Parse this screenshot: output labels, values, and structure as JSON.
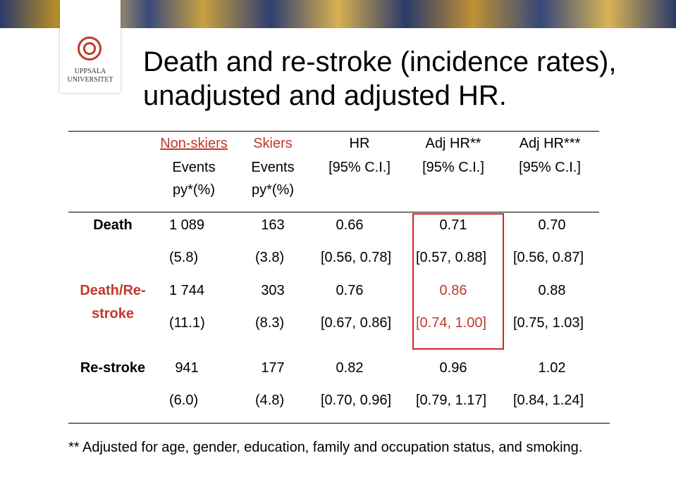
{
  "header": {
    "logo": [
      "UPPSALA",
      "UNIVERSITET"
    ],
    "title": [
      "Death and re-stroke (incidence rates),",
      "unadjusted and adjusted HR."
    ]
  },
  "table": {
    "columns": [
      [
        "Non-skiers",
        "Events",
        "py*(%)"
      ],
      [
        "Skiers",
        "Events",
        "py*(%)"
      ],
      [
        "HR",
        "[95% C.I.]"
      ],
      [
        "Adj HR**",
        "[95% C.I.]"
      ],
      [
        "Adj HR***",
        "[95% C.I.]"
      ]
    ],
    "rows": [
      {
        "label": [
          "Death"
        ],
        "events": [
          "1 089",
          "163",
          "0.66",
          "0.71",
          "0.70"
        ],
        "rates": [
          "(5.8)",
          "(3.8)",
          "[0.56, 0.78]",
          "[0.57, 0.88]",
          "[0.56, 0.87]"
        ]
      },
      {
        "label": [
          "Death/Re-",
          "stroke"
        ],
        "events": [
          "1 744",
          "303",
          "0.76",
          "0.86",
          "0.88"
        ],
        "rates": [
          "(11.1)",
          "(8.3)",
          "[0.67, 0.86]",
          "[0.74, 1.00]",
          "[0.75, 1.03]"
        ]
      },
      {
        "label": [
          "Re-stroke"
        ],
        "events": [
          "941",
          "177",
          "0.82",
          "0.96",
          "1.02"
        ],
        "rates": [
          "(6.0)",
          "(4.8)",
          "[0.70, 0.96]",
          "[0.79, 1.17]",
          "[0.84, 1.24]"
        ]
      }
    ]
  },
  "footnote": "** Adjusted for age, gender, education, family and occupation status, and smoking."
}
